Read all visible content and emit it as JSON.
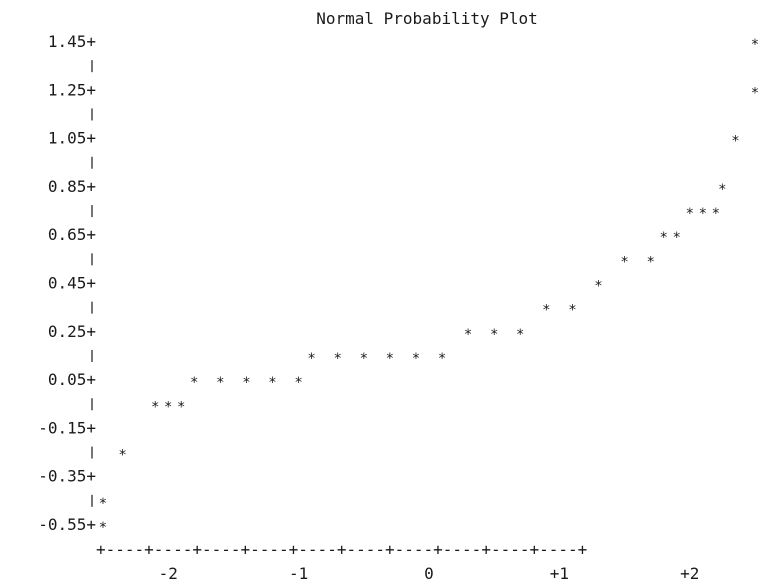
{
  "chart_data": {
    "type": "scatter",
    "title": "Normal Probability Plot",
    "xlabel": "",
    "ylabel": "",
    "x_tick_labels": [
      "-2",
      "-1",
      "0",
      "+1",
      "+2"
    ],
    "x_tick_values": [
      -2,
      -1,
      0,
      1,
      2
    ],
    "y_tick_labels": [
      "1.45+",
      "1.25+",
      "1.05+",
      "0.85+",
      "0.65+",
      "0.45+",
      "0.25+",
      "0.05+",
      "-0.15+",
      "-0.35+",
      "-0.55+"
    ],
    "y_tick_values": [
      1.45,
      1.25,
      1.05,
      0.85,
      0.65,
      0.45,
      0.25,
      0.05,
      -0.15,
      -0.35,
      -0.55
    ],
    "xlim": [
      -2.5,
      2.5
    ],
    "ylim": [
      -0.55,
      1.45
    ],
    "bottom_axis_text": "+----+----+----+----+----+----+----+----+----+----+",
    "grid": false,
    "series": [
      {
        "values": [
          {
            "x": -2.5,
            "y": -0.55
          },
          {
            "x": -2.5,
            "y": -0.45
          },
          {
            "x": -2.35,
            "y": -0.25
          },
          {
            "x": -2.1,
            "y": -0.05
          },
          {
            "x": -2.0,
            "y": -0.05
          },
          {
            "x": -1.9,
            "y": -0.05
          },
          {
            "x": -1.8,
            "y": 0.05
          },
          {
            "x": -1.6,
            "y": 0.05
          },
          {
            "x": -1.4,
            "y": 0.05
          },
          {
            "x": -1.2,
            "y": 0.05
          },
          {
            "x": -1.0,
            "y": 0.05
          },
          {
            "x": -0.9,
            "y": 0.15
          },
          {
            "x": -0.7,
            "y": 0.15
          },
          {
            "x": -0.5,
            "y": 0.15
          },
          {
            "x": -0.3,
            "y": 0.15
          },
          {
            "x": -0.1,
            "y": 0.15
          },
          {
            "x": 0.1,
            "y": 0.15
          },
          {
            "x": 0.3,
            "y": 0.25
          },
          {
            "x": 0.5,
            "y": 0.25
          },
          {
            "x": 0.7,
            "y": 0.25
          },
          {
            "x": 0.9,
            "y": 0.35
          },
          {
            "x": 1.1,
            "y": 0.35
          },
          {
            "x": 1.3,
            "y": 0.45
          },
          {
            "x": 1.5,
            "y": 0.55
          },
          {
            "x": 1.7,
            "y": 0.55
          },
          {
            "x": 1.8,
            "y": 0.65
          },
          {
            "x": 1.9,
            "y": 0.65
          },
          {
            "x": 2.0,
            "y": 0.75
          },
          {
            "x": 2.1,
            "y": 0.75
          },
          {
            "x": 2.2,
            "y": 0.75
          },
          {
            "x": 2.25,
            "y": 0.85
          },
          {
            "x": 2.35,
            "y": 1.05
          },
          {
            "x": 2.5,
            "y": 1.25
          },
          {
            "x": 2.5,
            "y": 1.45
          }
        ]
      }
    ]
  }
}
